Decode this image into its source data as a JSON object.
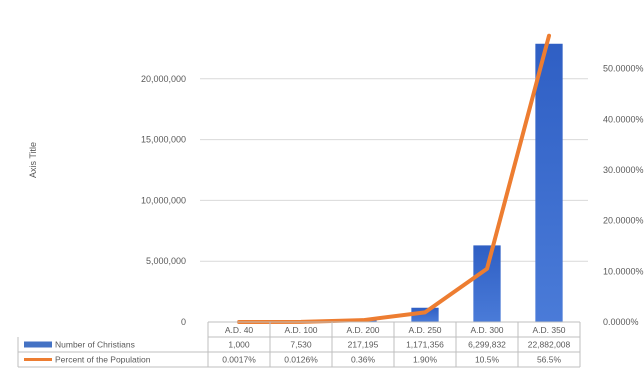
{
  "chart_data": {
    "type": "bar",
    "categories": [
      "A.D. 40",
      "A.D. 100",
      "A.D. 200",
      "A.D. 250",
      "A.D. 300",
      "A.D. 350"
    ],
    "series": [
      {
        "name": "Number of Christians",
        "kind": "bar",
        "axis": "left",
        "color": "#4472c4",
        "values": [
          1000,
          7530,
          217195,
          1171356,
          6299832,
          22882008
        ],
        "labels": [
          "1,000",
          "7,530",
          "217,195",
          "1,171,356",
          "6,299,832",
          "22,882,008"
        ]
      },
      {
        "name": "Percent of the Population",
        "kind": "line",
        "axis": "right",
        "color": "#ed7d31",
        "values": [
          0.0017,
          0.0126,
          0.36,
          1.9,
          10.5,
          56.5
        ],
        "labels": [
          "0.0017%",
          "0.0126%",
          "0.36%",
          "1.90%",
          "10.5%",
          "56.5%"
        ]
      }
    ],
    "ylabel": "Axis Title",
    "ylim": [
      0,
      25000000
    ],
    "y_ticks": [
      "0",
      "5,000,000",
      "10,000,000",
      "15,000,000",
      "20,000,000"
    ],
    "y_tick_values": [
      0,
      5000000,
      10000000,
      15000000,
      20000000
    ],
    "y2lim": [
      0,
      60
    ],
    "y2_ticks": [
      "0.0000%",
      "10.0000%",
      "20.0000%",
      "30.0000%",
      "40.0000%",
      "50.0000%"
    ],
    "y2_tick_values": [
      0,
      10,
      20,
      30,
      40,
      50
    ],
    "grid": true,
    "data_table": true
  }
}
